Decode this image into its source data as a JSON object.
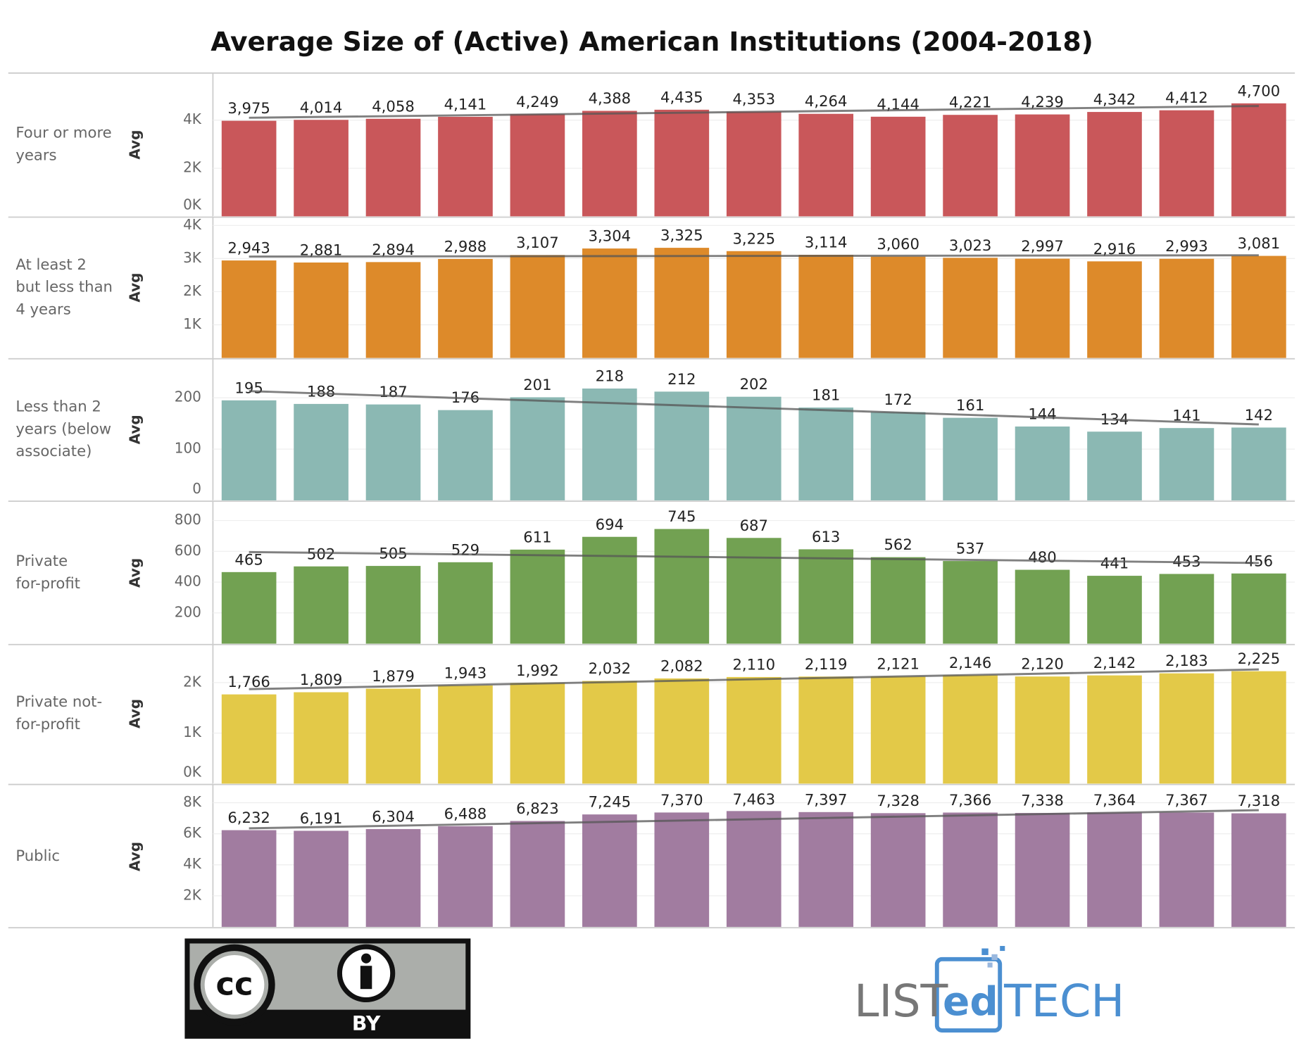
{
  "title": "Average Size of (Active) American Institutions (2004-2018)",
  "chart_data": [
    {
      "type": "bar",
      "row_label": [
        "Four or more",
        "years"
      ],
      "y_label": "Avg",
      "color": "#c9575a",
      "grid": true,
      "values": [
        3975,
        4014,
        4058,
        4141,
        4249,
        4388,
        4435,
        4353,
        4264,
        4144,
        4221,
        4239,
        4342,
        4412,
        4700
      ],
      "value_labels": [
        "3,975",
        "4,014",
        "4,058",
        "4,141",
        "4,249",
        "4,388",
        "4,435",
        "4,353",
        "4,264",
        "4,144",
        "4,221",
        "4,239",
        "4,342",
        "4,412",
        "4,700"
      ],
      "ylim": [
        0,
        5960
      ],
      "yticks": [
        {
          "value": 0,
          "label": "0K"
        },
        {
          "value": 2000,
          "label": "2K"
        },
        {
          "value": 4000,
          "label": "4K"
        }
      ],
      "trend": [
        4100,
        4590
      ]
    },
    {
      "type": "bar",
      "row_label": [
        "At least 2",
        "but less than",
        "4 years"
      ],
      "y_label": "Avg",
      "color": "#dd8a2a",
      "grid": true,
      "values": [
        2943,
        2881,
        2894,
        2988,
        3107,
        3304,
        3325,
        3225,
        3114,
        3060,
        3023,
        2997,
        2916,
        2993,
        3081
      ],
      "value_labels": [
        "2,943",
        "2,881",
        "2,894",
        "2,988",
        "3,107",
        "3,304",
        "3,325",
        "3,225",
        "3,114",
        "3,060",
        "3,023",
        "2,997",
        "2,916",
        "2,993",
        "3,081"
      ],
      "ylim": [
        0,
        4250
      ],
      "yticks": [
        {
          "value": 1000,
          "label": "1K"
        },
        {
          "value": 2000,
          "label": "2K"
        },
        {
          "value": 3000,
          "label": "3K"
        },
        {
          "value": 4000,
          "label": "4K"
        }
      ],
      "trend": [
        3060,
        3100
      ]
    },
    {
      "type": "bar",
      "row_label": [
        "Less than 2",
        "years (below",
        "associate)"
      ],
      "y_label": "Avg",
      "color": "#8bb8b3",
      "grid": true,
      "values": [
        195,
        188,
        187,
        176,
        201,
        218,
        212,
        202,
        181,
        172,
        161,
        144,
        134,
        141,
        142
      ],
      "ylim": [
        0,
        276
      ],
      "yticks": [
        0,
        100,
        200
      ],
      "trend": [
        213,
        148
      ]
    },
    {
      "type": "bar",
      "row_label": [
        "Private",
        "for-profit"
      ],
      "y_label": "Avg",
      "color": "#72a152",
      "grid": true,
      "values": [
        465,
        502,
        505,
        529,
        611,
        694,
        745,
        687,
        613,
        562,
        537,
        480,
        441,
        453,
        456
      ],
      "ylim": [
        0,
        920
      ],
      "yticks": [
        200,
        400,
        600,
        800
      ],
      "trend": [
        595,
        524
      ]
    },
    {
      "type": "bar",
      "row_label": [
        "Private not-",
        "for-profit"
      ],
      "y_label": "Avg",
      "color": "#e3c948",
      "grid": true,
      "values": [
        1766,
        1809,
        1879,
        1943,
        1992,
        2032,
        2082,
        2110,
        2119,
        2121,
        2146,
        2120,
        2142,
        2183,
        2225
      ],
      "value_labels": [
        "1,766",
        "1,809",
        "1,879",
        "1,943",
        "1,992",
        "2,032",
        "2,082",
        "2,110",
        "2,119",
        "2,121",
        "2,146",
        "2,120",
        "2,142",
        "2,183",
        "2,225"
      ],
      "ylim": [
        0,
        2770
      ],
      "yticks": [
        {
          "value": 0,
          "label": "0K"
        },
        {
          "value": 1000,
          "label": "1K"
        },
        {
          "value": 2000,
          "label": "2K"
        }
      ],
      "trend": [
        1870,
        2260
      ]
    },
    {
      "type": "bar",
      "row_label": [
        "Public"
      ],
      "y_label": "Avg",
      "color": "#a17ca0",
      "grid": true,
      "values": [
        6232,
        6191,
        6304,
        6488,
        6823,
        7245,
        7370,
        7463,
        7397,
        7328,
        7366,
        7338,
        7364,
        7367,
        7318
      ],
      "value_labels": [
        "6,232",
        "6,191",
        "6,304",
        "6,488",
        "6,823",
        "7,245",
        "7,370",
        "7,463",
        "7,397",
        "7,328",
        "7,366",
        "7,338",
        "7,364",
        "7,367",
        "7,318"
      ],
      "ylim": [
        0,
        9070
      ],
      "yticks": [
        {
          "value": 2000,
          "label": "2K"
        },
        {
          "value": 4000,
          "label": "4K"
        },
        {
          "value": 6000,
          "label": "6K"
        },
        {
          "value": 8000,
          "label": "8K"
        }
      ],
      "trend": [
        6350,
        7520
      ]
    }
  ],
  "logos": {
    "license_icon": "cc",
    "license": "BY",
    "brand": [
      "LIST",
      "ed",
      "TECH"
    ]
  }
}
